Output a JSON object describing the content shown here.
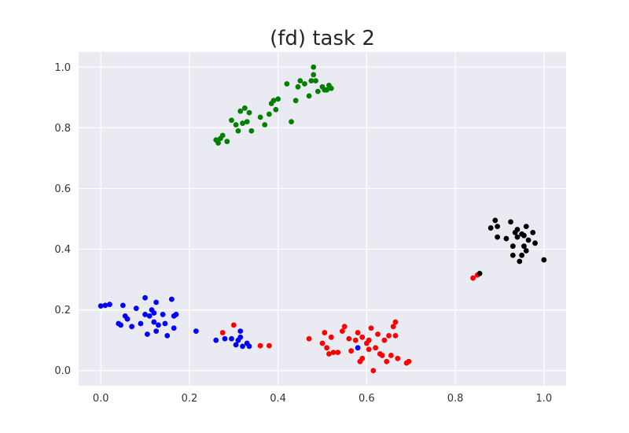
{
  "chart_data": {
    "type": "scatter",
    "title": "(fd) task 2",
    "xlabel": "",
    "ylabel": "",
    "xlim": [
      -0.05,
      1.05
    ],
    "ylim": [
      -0.05,
      1.05
    ],
    "xticks": [
      0.0,
      0.2,
      0.4,
      0.6,
      0.8,
      1.0
    ],
    "yticks": [
      0.0,
      0.2,
      0.4,
      0.6,
      0.8,
      1.0
    ],
    "xtick_labels": [
      "0.0",
      "0.2",
      "0.4",
      "0.6",
      "0.8",
      "1.0"
    ],
    "ytick_labels": [
      "0.0",
      "0.2",
      "0.4",
      "0.6",
      "0.8",
      "1.0"
    ],
    "grid": true,
    "background_color": "#eaeaf2",
    "grid_color": "#ffffff",
    "series": [
      {
        "color": "#0000ff",
        "points": [
          [
            0.0,
            0.213
          ],
          [
            0.01,
            0.215
          ],
          [
            0.02,
            0.218
          ],
          [
            0.04,
            0.155
          ],
          [
            0.045,
            0.15
          ],
          [
            0.05,
            0.215
          ],
          [
            0.055,
            0.18
          ],
          [
            0.06,
            0.17
          ],
          [
            0.07,
            0.145
          ],
          [
            0.08,
            0.205
          ],
          [
            0.09,
            0.155
          ],
          [
            0.1,
            0.24
          ],
          [
            0.1,
            0.185
          ],
          [
            0.105,
            0.12
          ],
          [
            0.11,
            0.18
          ],
          [
            0.115,
            0.2
          ],
          [
            0.12,
            0.19
          ],
          [
            0.12,
            0.16
          ],
          [
            0.125,
            0.225
          ],
          [
            0.125,
            0.13
          ],
          [
            0.13,
            0.15
          ],
          [
            0.14,
            0.185
          ],
          [
            0.145,
            0.155
          ],
          [
            0.15,
            0.115
          ],
          [
            0.16,
            0.235
          ],
          [
            0.165,
            0.18
          ],
          [
            0.165,
            0.14
          ],
          [
            0.17,
            0.185
          ],
          [
            0.215,
            0.13
          ],
          [
            0.26,
            0.1
          ],
          [
            0.28,
            0.105
          ],
          [
            0.295,
            0.105
          ],
          [
            0.305,
            0.085
          ],
          [
            0.31,
            0.1
          ],
          [
            0.315,
            0.11
          ],
          [
            0.315,
            0.13
          ],
          [
            0.32,
            0.08
          ],
          [
            0.33,
            0.09
          ],
          [
            0.335,
            0.08
          ],
          [
            0.58,
            0.075
          ]
        ]
      },
      {
        "color": "#ff0000",
        "points": [
          [
            0.275,
            0.125
          ],
          [
            0.3,
            0.15
          ],
          [
            0.36,
            0.082
          ],
          [
            0.38,
            0.082
          ],
          [
            0.47,
            0.105
          ],
          [
            0.5,
            0.09
          ],
          [
            0.505,
            0.125
          ],
          [
            0.51,
            0.075
          ],
          [
            0.515,
            0.055
          ],
          [
            0.52,
            0.11
          ],
          [
            0.525,
            0.06
          ],
          [
            0.535,
            0.06
          ],
          [
            0.545,
            0.13
          ],
          [
            0.55,
            0.145
          ],
          [
            0.56,
            0.105
          ],
          [
            0.565,
            0.065
          ],
          [
            0.575,
            0.1
          ],
          [
            0.58,
            0.125
          ],
          [
            0.585,
            0.03
          ],
          [
            0.59,
            0.04
          ],
          [
            0.59,
            0.11
          ],
          [
            0.6,
            0.09
          ],
          [
            0.605,
            0.1
          ],
          [
            0.605,
            0.07
          ],
          [
            0.61,
            0.14
          ],
          [
            0.615,
            0.0
          ],
          [
            0.62,
            0.075
          ],
          [
            0.625,
            0.12
          ],
          [
            0.63,
            0.055
          ],
          [
            0.635,
            0.05
          ],
          [
            0.64,
            0.1
          ],
          [
            0.645,
            0.03
          ],
          [
            0.65,
            0.115
          ],
          [
            0.655,
            0.05
          ],
          [
            0.66,
            0.145
          ],
          [
            0.665,
            0.16
          ],
          [
            0.665,
            0.115
          ],
          [
            0.67,
            0.04
          ],
          [
            0.69,
            0.025
          ],
          [
            0.695,
            0.03
          ],
          [
            0.84,
            0.305
          ],
          [
            0.85,
            0.315
          ]
        ]
      },
      {
        "color": "#008000",
        "points": [
          [
            0.26,
            0.76
          ],
          [
            0.265,
            0.75
          ],
          [
            0.27,
            0.765
          ],
          [
            0.275,
            0.775
          ],
          [
            0.285,
            0.755
          ],
          [
            0.295,
            0.825
          ],
          [
            0.305,
            0.81
          ],
          [
            0.31,
            0.79
          ],
          [
            0.315,
            0.855
          ],
          [
            0.32,
            0.815
          ],
          [
            0.325,
            0.865
          ],
          [
            0.33,
            0.82
          ],
          [
            0.335,
            0.85
          ],
          [
            0.34,
            0.79
          ],
          [
            0.36,
            0.835
          ],
          [
            0.37,
            0.81
          ],
          [
            0.38,
            0.845
          ],
          [
            0.385,
            0.88
          ],
          [
            0.39,
            0.89
          ],
          [
            0.395,
            0.86
          ],
          [
            0.4,
            0.895
          ],
          [
            0.42,
            0.945
          ],
          [
            0.43,
            0.82
          ],
          [
            0.44,
            0.89
          ],
          [
            0.445,
            0.935
          ],
          [
            0.45,
            0.955
          ],
          [
            0.46,
            0.945
          ],
          [
            0.47,
            0.905
          ],
          [
            0.475,
            0.955
          ],
          [
            0.48,
            1.0
          ],
          [
            0.48,
            0.975
          ],
          [
            0.485,
            0.955
          ],
          [
            0.49,
            0.92
          ],
          [
            0.5,
            0.935
          ],
          [
            0.505,
            0.925
          ],
          [
            0.51,
            0.925
          ],
          [
            0.515,
            0.94
          ],
          [
            0.52,
            0.93
          ]
        ]
      },
      {
        "color": "#000000",
        "points": [
          [
            0.855,
            0.32
          ],
          [
            0.88,
            0.47
          ],
          [
            0.89,
            0.495
          ],
          [
            0.895,
            0.475
          ],
          [
            0.895,
            0.44
          ],
          [
            0.915,
            0.435
          ],
          [
            0.925,
            0.49
          ],
          [
            0.93,
            0.41
          ],
          [
            0.93,
            0.38
          ],
          [
            0.935,
            0.455
          ],
          [
            0.94,
            0.465
          ],
          [
            0.94,
            0.44
          ],
          [
            0.945,
            0.36
          ],
          [
            0.95,
            0.45
          ],
          [
            0.95,
            0.38
          ],
          [
            0.955,
            0.445
          ],
          [
            0.955,
            0.41
          ],
          [
            0.96,
            0.475
          ],
          [
            0.96,
            0.395
          ],
          [
            0.965,
            0.43
          ],
          [
            0.975,
            0.455
          ],
          [
            0.98,
            0.42
          ],
          [
            1.0,
            0.365
          ]
        ]
      }
    ]
  }
}
